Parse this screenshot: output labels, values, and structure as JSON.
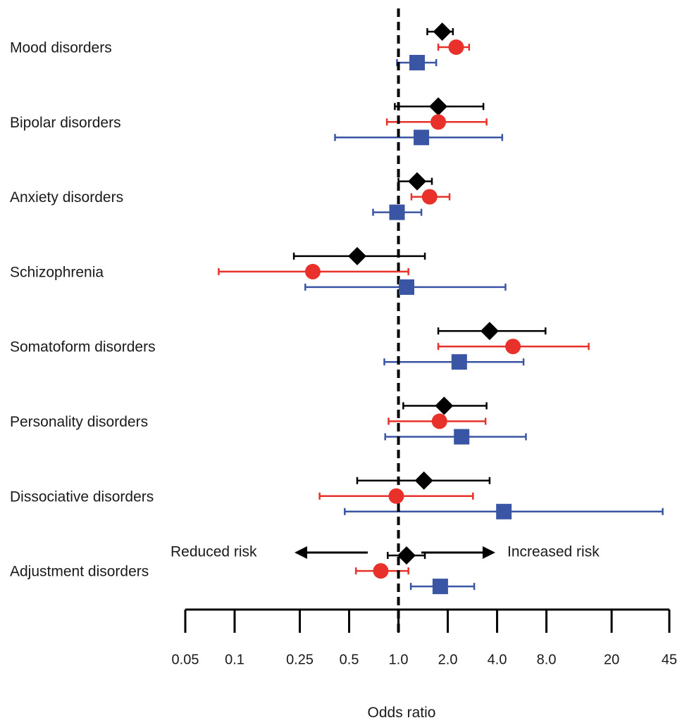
{
  "chart_data": {
    "type": "forest",
    "xlabel": "Odds ratio",
    "xscale": "log",
    "xlim": [
      0.05,
      45
    ],
    "reference_line": 1.0,
    "tick_values": [
      0.05,
      0.1,
      0.25,
      0.5,
      1.0,
      2.0,
      4.0,
      8.0,
      20,
      45
    ],
    "tick_labels": [
      "0.05",
      "0.1",
      "0.25",
      "0.5",
      "1.0",
      "2.0",
      "4.0",
      "8.0",
      "20",
      "45"
    ],
    "annotations": {
      "left": "Reduced risk",
      "right": "Increased risk"
    },
    "categories": [
      "Mood disorders",
      "Bipolar disorders",
      "Anxiety disorders",
      "Schizophrenia",
      "Somatoform disorders",
      "Personality disorders",
      "Dissociative disorders",
      "Adjustment disorders"
    ],
    "series": [
      {
        "marker": "diamond",
        "color": "#000000",
        "points": [
          {
            "or": 1.85,
            "lo": 1.5,
            "hi": 2.15
          },
          {
            "or": 1.75,
            "lo": 0.95,
            "hi": 3.3
          },
          {
            "or": 1.3,
            "lo": 1.0,
            "hi": 1.6
          },
          {
            "or": 0.56,
            "lo": 0.23,
            "hi": 1.45
          },
          {
            "or": 3.6,
            "lo": 1.75,
            "hi": 7.9
          },
          {
            "or": 1.9,
            "lo": 1.07,
            "hi": 3.45
          },
          {
            "or": 1.43,
            "lo": 0.56,
            "hi": 3.6
          },
          {
            "or": 1.12,
            "lo": 0.86,
            "hi": 1.45
          }
        ]
      },
      {
        "marker": "circle",
        "color": "#e8312a",
        "points": [
          {
            "or": 2.25,
            "lo": 1.75,
            "hi": 2.7
          },
          {
            "or": 1.75,
            "lo": 0.85,
            "hi": 3.45
          },
          {
            "or": 1.55,
            "lo": 1.2,
            "hi": 2.05
          },
          {
            "or": 0.3,
            "lo": 0.08,
            "hi": 1.15
          },
          {
            "or": 5.0,
            "lo": 1.75,
            "hi": 14.5
          },
          {
            "or": 1.78,
            "lo": 0.87,
            "hi": 3.4
          },
          {
            "or": 0.97,
            "lo": 0.33,
            "hi": 2.85
          },
          {
            "or": 0.78,
            "lo": 0.55,
            "hi": 1.15
          }
        ]
      },
      {
        "marker": "square",
        "color": "#3a55a4",
        "points": [
          {
            "or": 1.3,
            "lo": 0.98,
            "hi": 1.7
          },
          {
            "or": 1.38,
            "lo": 0.41,
            "hi": 4.3
          },
          {
            "or": 0.98,
            "lo": 0.7,
            "hi": 1.38
          },
          {
            "or": 1.12,
            "lo": 0.27,
            "hi": 4.5
          },
          {
            "or": 2.35,
            "lo": 0.82,
            "hi": 5.8
          },
          {
            "or": 2.43,
            "lo": 0.83,
            "hi": 6.0
          },
          {
            "or": 4.4,
            "lo": 0.47,
            "hi": 41.0
          },
          {
            "or": 1.8,
            "lo": 1.19,
            "hi": 2.9
          }
        ]
      }
    ]
  }
}
